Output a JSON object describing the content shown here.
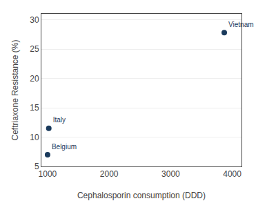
{
  "chart_data": {
    "type": "scatter",
    "x": [
      1000,
      1020,
      3870
    ],
    "values": [
      7.0,
      11.5,
      27.8
    ],
    "labels": [
      "Belgium",
      "Italy",
      "Vietnam"
    ],
    "color": "#1a3a5c",
    "xlabel": "Cephalosporin consumption (DDD)",
    "ylabel": "Ceftriaxone Resistance (%)",
    "xlim": [
      900,
      4150
    ],
    "ylim": [
      5,
      31
    ],
    "xticks": [
      1000,
      2000,
      3000,
      4000
    ],
    "yticks": [
      5,
      10,
      15,
      20,
      25,
      30
    ],
    "grid": true
  }
}
